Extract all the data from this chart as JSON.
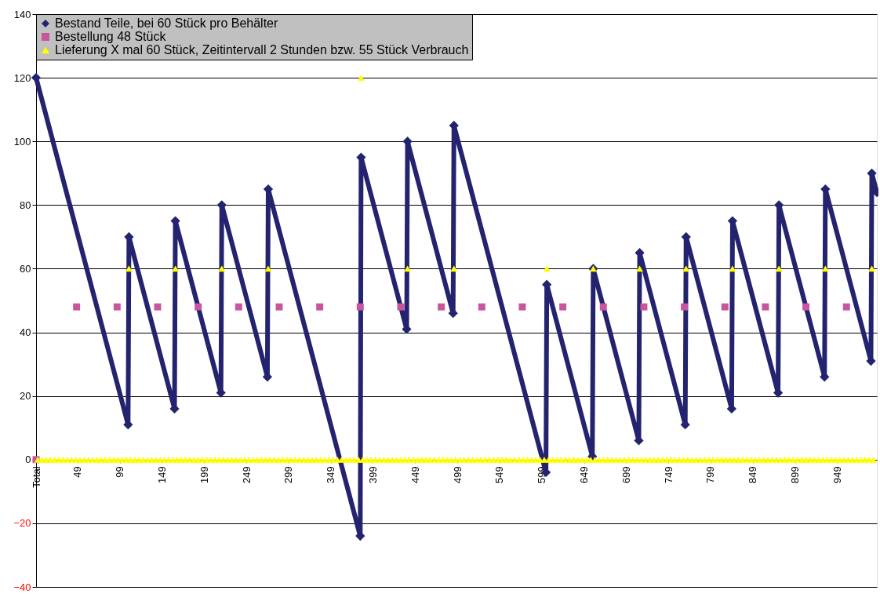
{
  "chart_data": {
    "type": "line",
    "xlim": [
      0,
      996
    ],
    "xticks": [
      {
        "value": 0,
        "label": "Total"
      },
      49,
      99,
      149,
      199,
      249,
      299,
      349,
      399,
      449,
      499,
      549,
      599,
      649,
      699,
      749,
      799,
      849,
      899,
      949
    ],
    "ylim": [
      -40,
      140
    ],
    "yticks": [
      -40,
      -20,
      0,
      20,
      40,
      60,
      80,
      100,
      120,
      140
    ],
    "grid": "y",
    "legend": "top left",
    "series": [
      {
        "name": "Bestand Teile, bei 60 Stück pro Behälter",
        "marker": "diamond",
        "color": "#23236f",
        "x": [
          0,
          109,
          110,
          164,
          165,
          219,
          220,
          274,
          275,
          384,
          385,
          439,
          440,
          494,
          495,
          604,
          605,
          659,
          660,
          714,
          715,
          769,
          770,
          824,
          825,
          879,
          880,
          934,
          935,
          989,
          990,
          996
        ],
        "values": [
          120,
          11,
          70,
          16,
          75,
          21,
          80,
          26,
          85,
          -24,
          95,
          41,
          100,
          46,
          105,
          -4,
          55,
          1,
          60,
          6,
          65,
          11,
          70,
          16,
          75,
          21,
          80,
          26,
          85,
          31,
          90,
          84
        ]
      },
      {
        "name": "Bestellung 48 Stück",
        "type": "scatter",
        "marker": "square",
        "color": "#c8559e",
        "x": [
          0,
          48,
          96,
          144,
          192,
          240,
          288,
          336,
          384,
          432,
          480,
          528,
          576,
          624,
          672,
          720,
          768,
          816,
          864,
          912,
          960
        ],
        "values": [
          0,
          48,
          48,
          48,
          48,
          48,
          48,
          48,
          48,
          48,
          48,
          48,
          48,
          48,
          48,
          48,
          48,
          48,
          48,
          48,
          48
        ]
      },
      {
        "name": "Lieferung X mal 60 Stück, Zeitintervall 2 Stunden bzw. 55 Stück Verbrauch",
        "type": "scatter",
        "marker": "triangle",
        "color": "#ffff00",
        "x": [
          110,
          165,
          220,
          275,
          385,
          440,
          495,
          605,
          660,
          715,
          770,
          825,
          880,
          935,
          990,
          2,
          7,
          12,
          17,
          22,
          27,
          32,
          37,
          42,
          47,
          52,
          57,
          62,
          67,
          72,
          77,
          82,
          87,
          92,
          97,
          102,
          107,
          112,
          117,
          122,
          127,
          132,
          137,
          142,
          147,
          152,
          157,
          162,
          167,
          172,
          177,
          182,
          187,
          192,
          197,
          202,
          207,
          212,
          217,
          222,
          227,
          232,
          237,
          242,
          247,
          252,
          257,
          262,
          267,
          272,
          277,
          282,
          287,
          292,
          297,
          302,
          307,
          312,
          317,
          322,
          327,
          332,
          337,
          342,
          347,
          352,
          357,
          362,
          367,
          372,
          377,
          382,
          387,
          392,
          397,
          402,
          407,
          412,
          417,
          422,
          427,
          432,
          437,
          442,
          447,
          452,
          457,
          462,
          467,
          472,
          477,
          482,
          487,
          492,
          497,
          502,
          507,
          512,
          517,
          522,
          527,
          532,
          537,
          542,
          547,
          552,
          557,
          562,
          567,
          572,
          577,
          582,
          587,
          592,
          597,
          602,
          607,
          612,
          617,
          622,
          627,
          632,
          637,
          642,
          647,
          652,
          657,
          662,
          667,
          672,
          677,
          682,
          687,
          692,
          697,
          702,
          707,
          712,
          717,
          722,
          727,
          732,
          737,
          742,
          747,
          752,
          757,
          762,
          767,
          772,
          777,
          782,
          787,
          792,
          797,
          802,
          807,
          812,
          817,
          822,
          827,
          832,
          837,
          842,
          847,
          852,
          857,
          862,
          867,
          872,
          877,
          882,
          887,
          892,
          897,
          902,
          907,
          912,
          917,
          922,
          927,
          932,
          937,
          942,
          947,
          952,
          957,
          962,
          967,
          972,
          977,
          982,
          987,
          992
        ],
        "values": [
          60,
          60,
          60,
          60,
          120,
          60,
          60,
          60,
          60,
          60,
          60,
          60,
          60,
          60,
          60,
          0,
          0,
          0,
          0,
          0,
          0,
          0,
          0,
          0,
          0,
          0,
          0,
          0,
          0,
          0,
          0,
          0,
          0,
          0,
          0,
          0,
          0,
          0,
          0,
          0,
          0,
          0,
          0,
          0,
          0,
          0,
          0,
          0,
          0,
          0,
          0,
          0,
          0,
          0,
          0,
          0,
          0,
          0,
          0,
          0,
          0,
          0,
          0,
          0,
          0,
          0,
          0,
          0,
          0,
          0,
          0,
          0,
          0,
          0,
          0,
          0,
          0,
          0,
          0,
          0,
          0,
          0,
          0,
          0,
          0,
          0,
          0,
          0,
          0,
          0,
          0,
          0,
          0,
          0,
          0,
          0,
          0,
          0,
          0,
          0,
          0,
          0,
          0,
          0,
          0,
          0,
          0,
          0,
          0,
          0,
          0,
          0,
          0,
          0,
          0,
          0,
          0,
          0,
          0,
          0,
          0,
          0,
          0,
          0,
          0,
          0,
          0,
          0,
          0,
          0,
          0,
          0,
          0,
          0,
          0,
          0,
          0,
          0,
          0,
          0,
          0,
          0,
          0,
          0,
          0,
          0,
          0,
          0,
          0,
          0,
          0,
          0,
          0,
          0,
          0,
          0,
          0,
          0,
          0,
          0,
          0,
          0,
          0,
          0,
          0,
          0,
          0,
          0,
          0,
          0,
          0,
          0,
          0,
          0,
          0,
          0,
          0,
          0,
          0,
          0,
          0,
          0,
          0,
          0,
          0,
          0,
          0,
          0,
          0,
          0,
          0,
          0,
          0,
          0,
          0,
          0,
          0,
          0,
          0,
          0,
          0,
          0,
          0,
          0,
          0,
          0,
          0,
          0,
          0,
          0,
          0,
          0,
          0,
          0
        ]
      }
    ]
  }
}
